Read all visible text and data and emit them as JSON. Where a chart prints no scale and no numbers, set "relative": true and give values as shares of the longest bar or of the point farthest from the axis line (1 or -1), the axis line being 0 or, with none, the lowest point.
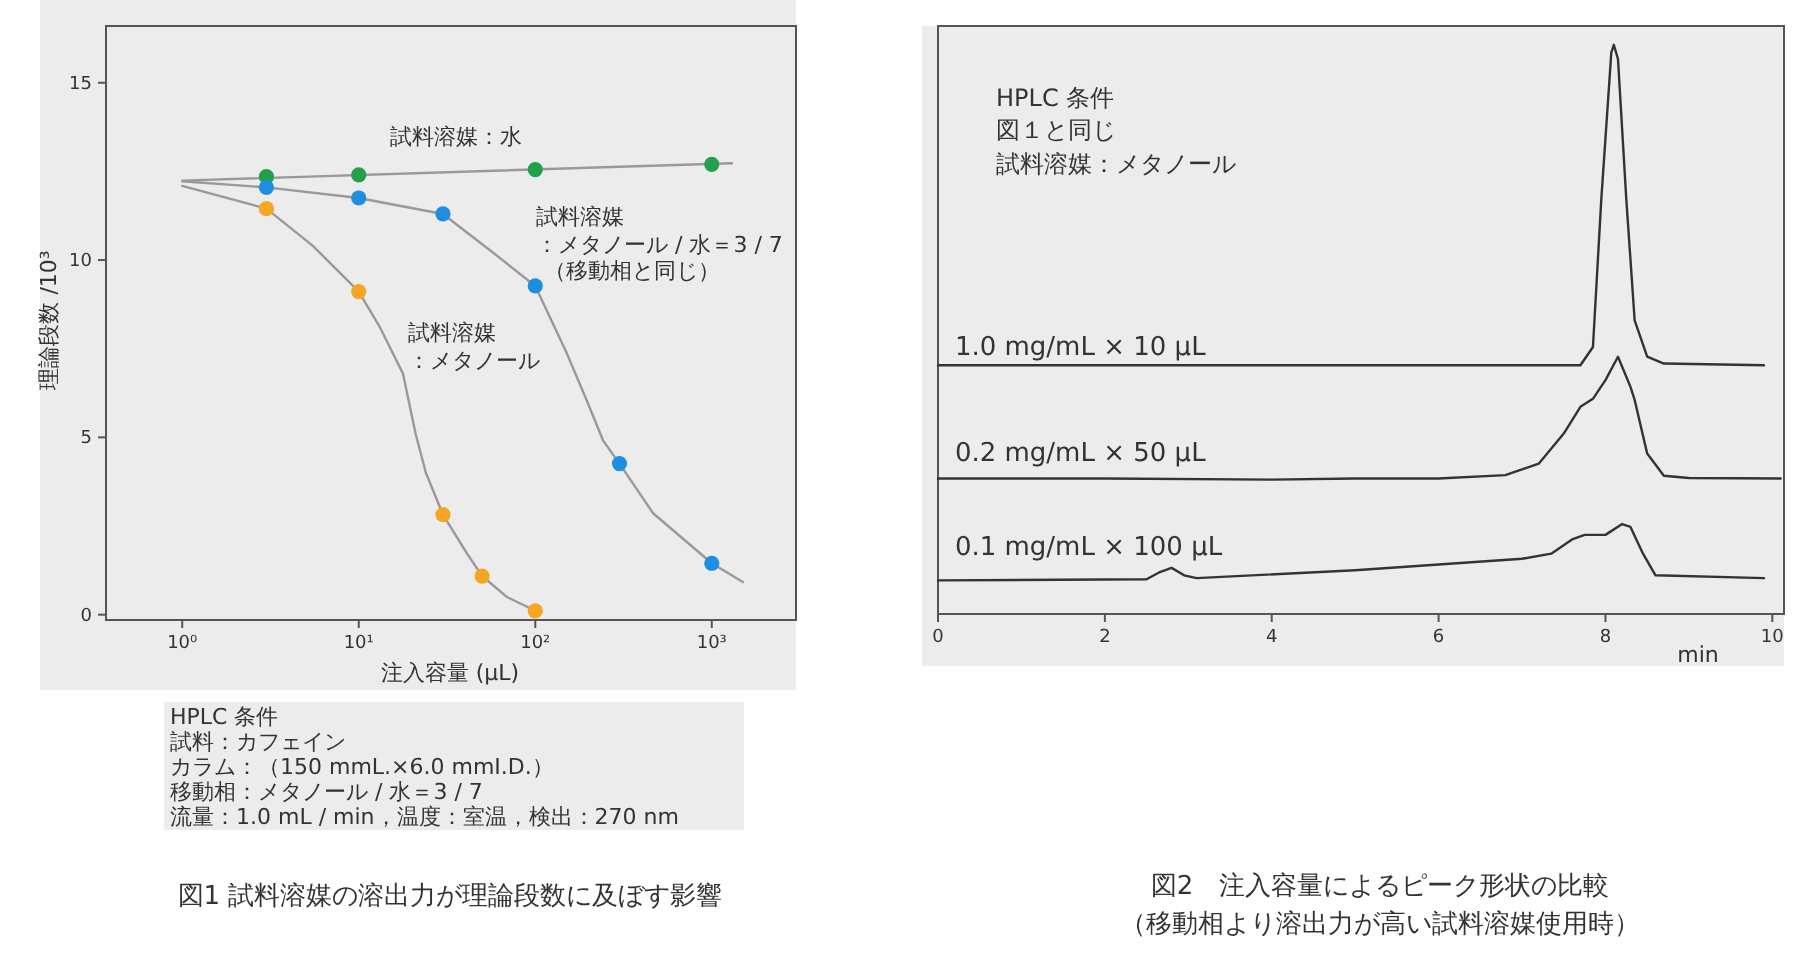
{
  "chart_data": [
    {
      "type": "scatter",
      "title": "図1 試料溶媒の溶出力が理論段数に及ぼす影響",
      "xlabel": "注入容量 (μL)",
      "ylabel": "理論段数 /10³",
      "log": "x",
      "xlim": [
        0.37,
        3000
      ],
      "ylim": [
        -0.15,
        16.6
      ],
      "xticks": [
        {
          "value": 1,
          "label": "10⁰"
        },
        {
          "value": 10,
          "label": "10¹"
        },
        {
          "value": 100,
          "label": "10²"
        },
        {
          "value": 1000,
          "label": "10³"
        }
      ],
      "yticks": [
        0,
        5,
        10,
        15
      ],
      "grid": false,
      "legend": false,
      "annotations": [
        "試料溶媒：水",
        "試料溶媒",
        "：メタノール / 水＝3 / 7",
        "（移動相と同じ）",
        "試料溶媒",
        "：メタノール",
        "HPLC 条件",
        "試料：カフェイン",
        "カラム：（150 mmL.×6.0 mmI.D.）",
        "移動相：メタノール / 水＝3 / 7",
        "流量：1.0 mL / min，温度：室温，検出：270 nm"
      ],
      "series": [
        {
          "type": "line",
          "color": "#999999",
          "x": [
            1,
            1300
          ],
          "values": [
            12.24,
            12.73
          ]
        },
        {
          "type": "line",
          "color": "#999999",
          "x": [
            1,
            3,
            10,
            30,
            58,
            100,
            150,
            195,
            243,
            300,
            465,
            1000,
            1500
          ],
          "values": [
            12.22,
            12.05,
            11.75,
            11.3,
            10.2,
            9.27,
            7.4,
            6.06,
            4.9,
            4.26,
            2.86,
            1.45,
            0.92
          ]
        },
        {
          "type": "line",
          "color": "#999999",
          "x": [
            1,
            3,
            5.5,
            10,
            13.2,
            17.8,
            21,
            24,
            30,
            41,
            50,
            69,
            100
          ],
          "values": [
            12.09,
            11.45,
            10.4,
            9.11,
            8.1,
            6.8,
            5.1,
            4.0,
            2.82,
            1.73,
            1.09,
            0.5,
            0.11
          ]
        },
        {
          "color": "#22a04a",
          "x": [
            3,
            10,
            100,
            1000
          ],
          "values": [
            12.35,
            12.4,
            12.55,
            12.7
          ]
        },
        {
          "color": "#1e8fe0",
          "x": [
            3,
            10,
            30,
            100,
            300,
            1000
          ],
          "values": [
            12.05,
            11.75,
            11.3,
            9.27,
            4.26,
            1.45
          ]
        },
        {
          "color": "#f5a623",
          "x": [
            3,
            10,
            30,
            50,
            100
          ],
          "values": [
            11.45,
            9.11,
            2.82,
            1.09,
            0.11
          ]
        }
      ]
    },
    {
      "type": "line",
      "relative": true,
      "title": "図2　注入容量によるピーク形状の比較",
      "subtitle": "（移動相より溶出力が高い試料溶媒使用時）",
      "xlabel": "min",
      "xlim": [
        0,
        10.14
      ],
      "xticks": [
        0,
        2,
        4,
        6,
        8,
        10
      ],
      "tick_labels": "x",
      "grid": false,
      "legend": false,
      "annotations": [
        "HPLC 条件",
        "図１と同じ",
        "試料溶媒：メタノール"
      ],
      "series": [
        {
          "name": "1.0 mg/mL × 10 μL",
          "color": "#333333",
          "x": [
            0,
            7.7,
            7.85,
            7.95,
            8.07,
            8.1,
            8.15,
            8.25,
            8.35,
            8.5,
            8.7,
            9.9
          ],
          "values": [
            0.437,
            0.437,
            0.469,
            0.728,
            0.986,
            1.0,
            0.975,
            0.728,
            0.516,
            0.452,
            0.44,
            0.437
          ]
        },
        {
          "name": "0.2 mg/mL × 50 μL",
          "color": "#333333",
          "x": [
            0,
            2,
            4,
            5,
            6,
            6.8,
            7.2,
            7.5,
            7.7,
            7.85,
            8.0,
            8.15,
            8.3,
            8.35,
            8.5,
            8.7,
            9.0,
            10.1
          ],
          "values": [
            0.238,
            0.238,
            0.236,
            0.238,
            0.238,
            0.244,
            0.264,
            0.317,
            0.364,
            0.378,
            0.411,
            0.452,
            0.399,
            0.376,
            0.282,
            0.243,
            0.239,
            0.238
          ]
        },
        {
          "name": "0.1 mg/mL × 100 μL",
          "color": "#333333",
          "x": [
            0,
            2.5,
            2.65,
            2.8,
            2.95,
            3.1,
            5,
            7,
            7.35,
            7.6,
            7.75,
            8.0,
            8.2,
            8.3,
            8.45,
            8.6,
            9.9
          ],
          "values": [
            0.059,
            0.061,
            0.073,
            0.081,
            0.068,
            0.063,
            0.077,
            0.097,
            0.106,
            0.131,
            0.139,
            0.139,
            0.158,
            0.153,
            0.106,
            0.068,
            0.063
          ]
        }
      ]
    }
  ]
}
